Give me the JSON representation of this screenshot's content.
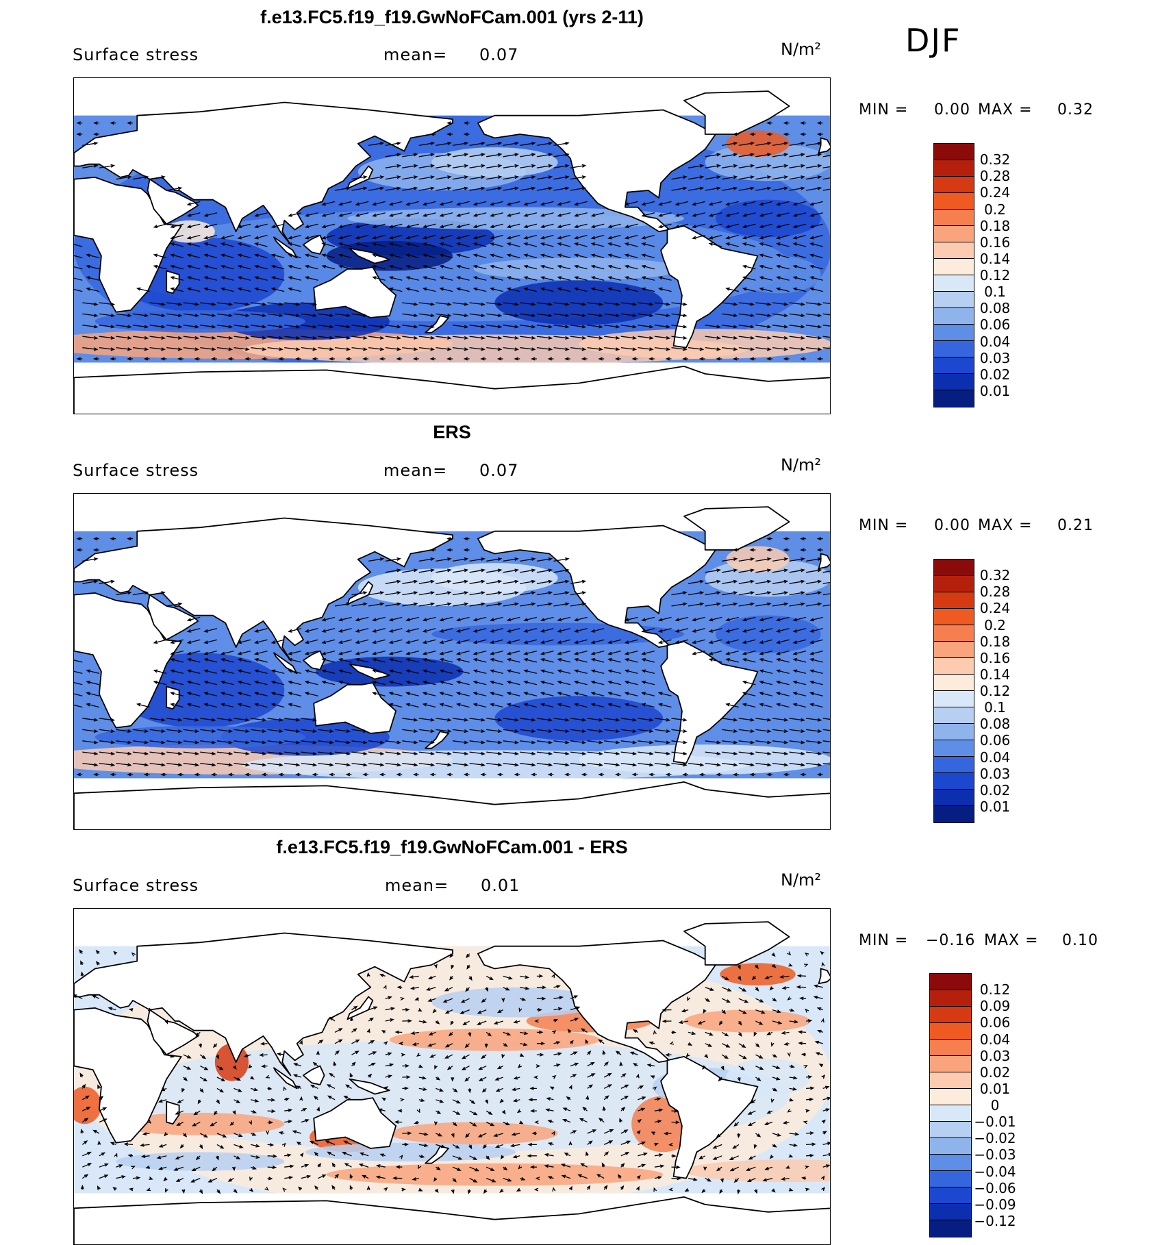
{
  "season": "DJF",
  "colors": {
    "land": "#ffffff",
    "coast": "#000000",
    "arrow": "#000000"
  },
  "panels": [
    {
      "title": "f.e13.FC5.f19_f19.GwNoFCam.001 (yrs 2-11)",
      "field_label": "Surface stress",
      "mean_label": "mean=",
      "mean_value": "0.07",
      "unit": "N/m²",
      "min_label": "MIN =",
      "min_value": "0.00",
      "max_label": "MAX =",
      "max_value": "0.32",
      "colorbar_labels": [
        "0.32",
        "0.28",
        "0.24",
        "0.2",
        "0.18",
        "0.16",
        "0.14",
        "0.12",
        "0.1",
        "0.08",
        "0.06",
        "0.04",
        "0.03",
        "0.02",
        "0.01"
      ],
      "colorbar_colors": [
        "#8b0a0a",
        "#b5200d",
        "#d63a12",
        "#ee5a22",
        "#f57f4f",
        "#f9a47c",
        "#fccbb0",
        "#fdebdc",
        "#d8e8f8",
        "#b7d0f1",
        "#8fb4ec",
        "#5e8ee6",
        "#3566de",
        "#1c47cf",
        "#0c2fb0",
        "#061d82"
      ]
    },
    {
      "title": "ERS",
      "field_label": "Surface stress",
      "mean_label": "mean=",
      "mean_value": "0.07",
      "unit": "N/m²",
      "min_label": "MIN =",
      "min_value": "0.00",
      "max_label": "MAX =",
      "max_value": "0.21",
      "colorbar_labels": [
        "0.32",
        "0.28",
        "0.24",
        "0.2",
        "0.18",
        "0.16",
        "0.14",
        "0.12",
        "0.1",
        "0.08",
        "0.06",
        "0.04",
        "0.03",
        "0.02",
        "0.01"
      ],
      "colorbar_colors": [
        "#8b0a0a",
        "#b5200d",
        "#d63a12",
        "#ee5a22",
        "#f57f4f",
        "#f9a47c",
        "#fccbb0",
        "#fdebdc",
        "#d8e8f8",
        "#b7d0f1",
        "#8fb4ec",
        "#5e8ee6",
        "#3566de",
        "#1c47cf",
        "#0c2fb0",
        "#061d82"
      ]
    },
    {
      "title": "f.e13.FC5.f19_f19.GwNoFCam.001 - ERS",
      "field_label": "Surface stress",
      "mean_label": "mean=",
      "mean_value": "0.01",
      "unit": "N/m²",
      "min_label": "MIN =",
      "min_value": "−0.16",
      "max_label": "MAX =",
      "max_value": "0.10",
      "colorbar_labels": [
        "0.12",
        "0.09",
        "0.06",
        "0.04",
        "0.03",
        "0.02",
        "0.01",
        "0",
        "−0.01",
        "−0.02",
        "−0.03",
        "−0.04",
        "−0.06",
        "−0.09",
        "−0.12"
      ],
      "colorbar_colors": [
        "#8b0a0a",
        "#b5200d",
        "#d63a12",
        "#ee5a22",
        "#f57f4f",
        "#f9a47c",
        "#fccbb0",
        "#fdebdc",
        "#d8e8f8",
        "#b7d0f1",
        "#8fb4ec",
        "#5e8ee6",
        "#3566de",
        "#1c47cf",
        "#0c2fb0",
        "#061d82"
      ]
    }
  ],
  "chart_data": [
    {
      "type": "heatmap",
      "title": "f.e13.FC5.f19_f19.GwNoFCam.001 (yrs 2-11)",
      "variable": "Surface stress",
      "units": "N/m²",
      "mean": 0.07,
      "min": 0.0,
      "max": 0.32,
      "season": "DJF",
      "contour_levels": [
        0.01,
        0.02,
        0.03,
        0.04,
        0.06,
        0.08,
        0.1,
        0.12,
        0.14,
        0.16,
        0.18,
        0.2,
        0.24,
        0.28,
        0.32
      ],
      "overlay": "wind-stress vectors"
    },
    {
      "type": "heatmap",
      "title": "ERS",
      "variable": "Surface stress",
      "units": "N/m²",
      "mean": 0.07,
      "min": 0.0,
      "max": 0.21,
      "season": "DJF",
      "contour_levels": [
        0.01,
        0.02,
        0.03,
        0.04,
        0.06,
        0.08,
        0.1,
        0.12,
        0.14,
        0.16,
        0.18,
        0.2,
        0.24,
        0.28,
        0.32
      ],
      "overlay": "wind-stress vectors"
    },
    {
      "type": "heatmap",
      "title": "f.e13.FC5.f19_f19.GwNoFCam.001 - ERS",
      "variable": "Surface stress",
      "units": "N/m²",
      "mean": 0.01,
      "min": -0.16,
      "max": 0.1,
      "season": "DJF",
      "contour_levels": [
        -0.12,
        -0.09,
        -0.06,
        -0.04,
        -0.03,
        -0.02,
        -0.01,
        0,
        0.01,
        0.02,
        0.03,
        0.04,
        0.06,
        0.09,
        0.12
      ],
      "overlay": "wind-stress difference vectors"
    }
  ]
}
